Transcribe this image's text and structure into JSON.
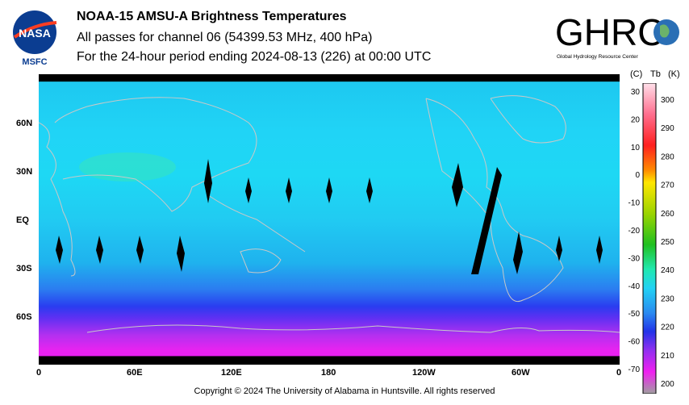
{
  "header": {
    "line1": "NOAA-15 AMSU-A Brightness Temperatures",
    "line2": "All passes for channel 06 (54399.53 MHz, 400 hPa)",
    "line3": "For the 24-hour period ending 2024-08-13 (226) at 00:00 UTC"
  },
  "logos": {
    "nasa_text": "NASA",
    "msfc_text": "MSFC",
    "ghrc_text": "GHRC",
    "ghrc_sub": "Global Hydrology Resource Center"
  },
  "map": {
    "lat_labels": [
      "60N",
      "30N",
      "EQ",
      "30S",
      "60S"
    ],
    "lon_labels": [
      "0",
      "60E",
      "120E",
      "180",
      "120W",
      "60W",
      "0"
    ]
  },
  "colorbar": {
    "unit_c": "(C)",
    "unit_tb": "Tb",
    "unit_k": "(K)",
    "celsius_ticks": [
      "30",
      "20",
      "10",
      "0",
      "-10",
      "-20",
      "-30",
      "-40",
      "-50",
      "-60",
      "-70"
    ],
    "kelvin_ticks": [
      "300",
      "290",
      "280",
      "270",
      "260",
      "250",
      "240",
      "230",
      "220",
      "210",
      "200"
    ]
  },
  "footer": {
    "copyright": "Copyright © 2024 The University of Alabama in Huntsville.  All rights reserved"
  }
}
